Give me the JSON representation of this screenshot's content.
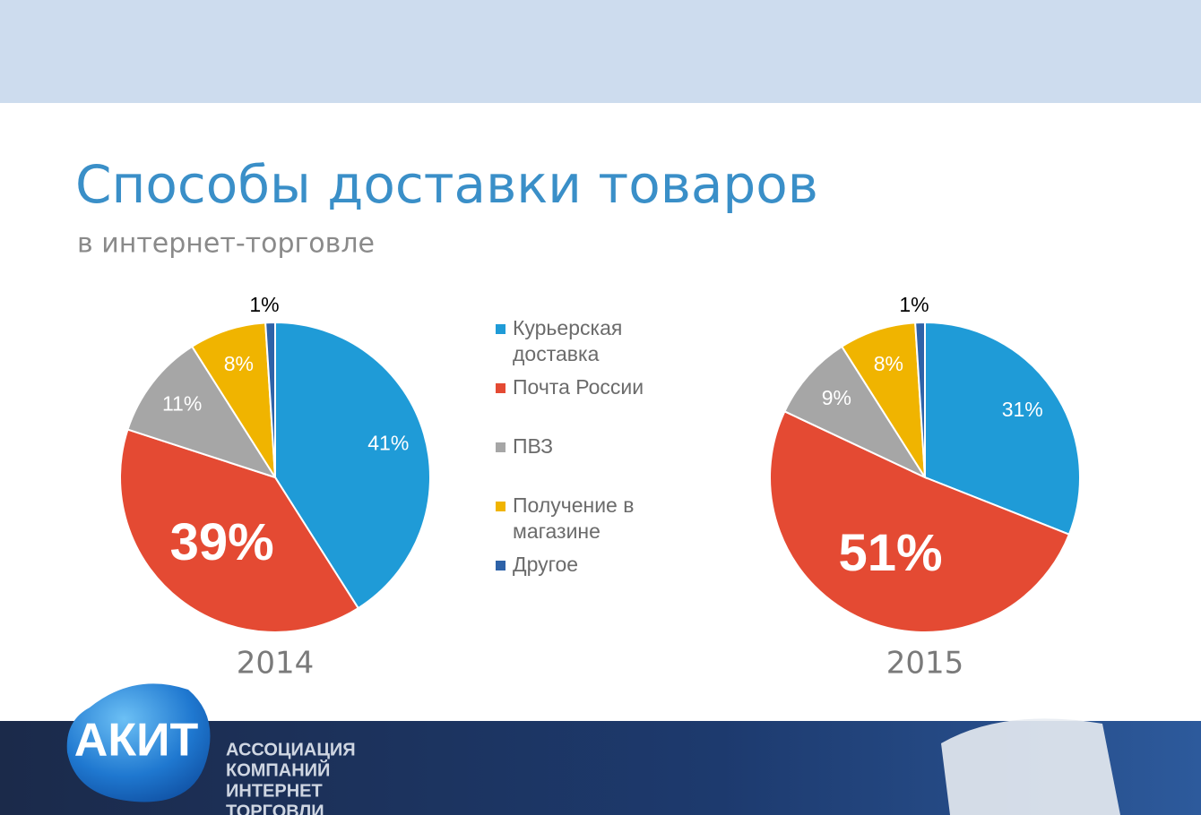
{
  "title": "Способы доставки товаров",
  "subtitle": "в интернет-торговле",
  "chart_data": [
    {
      "type": "pie",
      "title": "2014",
      "categories": [
        "Курьерская доставка",
        "Почта России",
        "ПВЗ",
        "Получение в магазине",
        "Другое"
      ],
      "values": [
        41,
        39,
        11,
        8,
        1
      ],
      "value_labels": [
        "41%",
        "39%",
        "11%",
        "8%",
        "1%"
      ],
      "colors": [
        "#1f9bd7",
        "#e44a33",
        "#a6a6a6",
        "#f0b400",
        "#2e62a8"
      ]
    },
    {
      "type": "pie",
      "title": "2015",
      "values": [
        31,
        51,
        9,
        8,
        1
      ],
      "value_labels": [
        "31%",
        "51%",
        "9%",
        "8%",
        "1%"
      ],
      "colors": [
        "#1f9bd7",
        "#e44a33",
        "#a6a6a6",
        "#f0b400",
        "#2e62a8"
      ]
    }
  ],
  "footer": {
    "logo": "АКИТ",
    "org": [
      "АССОЦИАЦИЯ",
      "КОМПАНИЙ",
      "ИНТЕРНЕТ",
      "ТОРГОВЛИ"
    ]
  }
}
